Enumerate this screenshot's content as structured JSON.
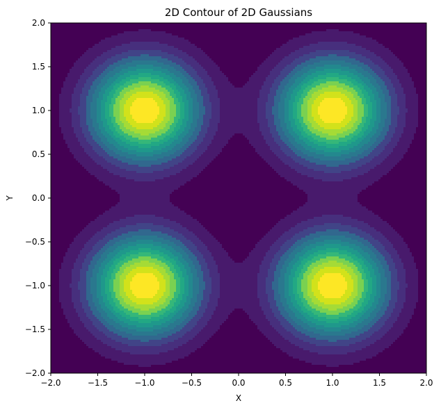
{
  "chart_data": {
    "type": "contour",
    "title": "2D Contour of 2D Gaussians",
    "xlabel": "X",
    "ylabel": "Y",
    "xlim": [
      -2.0,
      2.0
    ],
    "ylim": [
      -2.0,
      2.0
    ],
    "x_ticks": [
      -2.0,
      -1.5,
      -1.0,
      -0.5,
      0.0,
      0.5,
      1.0,
      1.5,
      2.0
    ],
    "y_ticks": [
      -2.0,
      -1.5,
      -1.0,
      -0.5,
      0.0,
      0.5,
      1.0,
      1.5,
      2.0
    ],
    "x_tick_labels": [
      "−2.0",
      "−1.5",
      "−1.0",
      "−0.5",
      "0.0",
      "0.5",
      "1.0",
      "1.5",
      "2.0"
    ],
    "y_tick_labels": [
      "−2.0",
      "−1.5",
      "−1.0",
      "−0.5",
      "0.0",
      "0.5",
      "1.0",
      "1.5",
      "2.0"
    ],
    "colormap": "viridis",
    "grid": false,
    "gaussian_centers": [
      {
        "x": -1.0,
        "y": 1.0
      },
      {
        "x": 1.0,
        "y": 1.0
      },
      {
        "x": -1.0,
        "y": -1.0
      },
      {
        "x": 1.0,
        "y": -1.0
      }
    ],
    "gaussian_sigma": 0.4,
    "contour_levels": 14,
    "level_colors": [
      "#440154",
      "#481a6c",
      "#472f7d",
      "#414487",
      "#39568c",
      "#31688e",
      "#2a788e",
      "#23888e",
      "#1f988b",
      "#22a884",
      "#35b779",
      "#54c568",
      "#7ad151",
      "#a5db36",
      "#d2e21b",
      "#fde725"
    ]
  }
}
